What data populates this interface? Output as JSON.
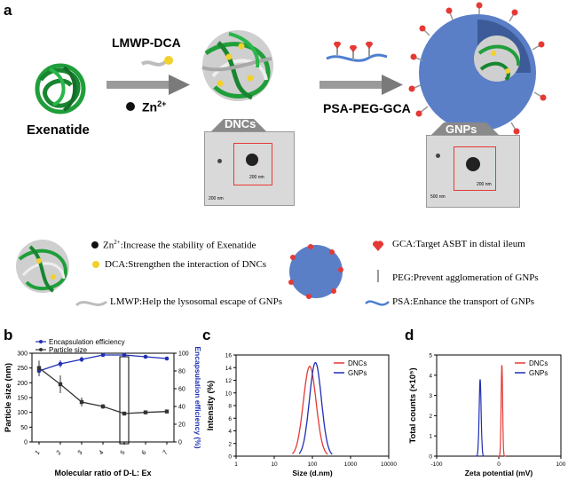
{
  "panels": {
    "a": "a",
    "b": "b",
    "c": "c",
    "d": "d"
  },
  "scheme": {
    "exenatide": "Exenatide",
    "lmwp_dca": "LMWP-DCA",
    "zn": "Zn",
    "zn_sup": "2+",
    "psa_peg_gca": "PSA-PEG-GCA",
    "dncs": "DNCs",
    "gnps": "GNPs",
    "scale_dnc_inner": "200 nm",
    "scale_dnc_outer": "200 nm",
    "scale_gnp_inner": "200 nm",
    "scale_gnp_outer": "500 nm"
  },
  "legend": {
    "zn_prefix": "Zn",
    "zn_sup": "2+",
    "zn_text": ":Increase the stability of Exenatide",
    "dca": "DCA:Strengthen the interaction of DNCs",
    "lmwp": "LMWP:Help the lysosomal escape of GNPs",
    "gca": "GCA:Target ASBT in distal ileum",
    "peg": "PEG:Prevent agglomeration of  GNPs",
    "psa": "PSA:Enhance the transport of GNPs"
  },
  "colors": {
    "red": "#e53935",
    "blue": "#1f2fb5",
    "green": "#1f9e3a",
    "yellow": "#f2d12a",
    "sphere": "#5b7fc7"
  },
  "chart_data": [
    {
      "id": "b",
      "type": "line",
      "xlabel": "Molecular ratio of  D-L: Ex",
      "ylabel": "Particle size (nm)",
      "y2label": "Encapsulation efficiency (%)",
      "x": [
        1,
        2,
        3,
        4,
        5,
        6,
        7
      ],
      "ylim": [
        0,
        300
      ],
      "yticks": [
        0,
        50,
        100,
        150,
        200,
        250,
        300
      ],
      "y2lim": [
        0,
        100
      ],
      "y2ticks": [
        0,
        20,
        40,
        60,
        80,
        100
      ],
      "highlight_x": 5,
      "series": [
        {
          "name": "Encapsulation efficiency",
          "axis": "right",
          "color": "#1f2fb5",
          "values": [
            80,
            88,
            93,
            98,
            98,
            96,
            94
          ],
          "errors": [
            6,
            4,
            3,
            2,
            2,
            2,
            2
          ]
        },
        {
          "name": "Particle size",
          "axis": "left",
          "color": "#333333",
          "values": [
            250,
            195,
            135,
            120,
            96,
            100,
            103
          ],
          "errors": [
            25,
            30,
            15,
            8,
            5,
            5,
            4
          ]
        }
      ]
    },
    {
      "id": "c",
      "type": "line",
      "xlabel": "Size (d.nm)",
      "ylabel": "Intensity (%)",
      "xscale": "log",
      "xticks": [
        1,
        10,
        100,
        1000,
        10000
      ],
      "xticklabels": [
        "1",
        "10",
        "100",
        "1000",
        "10000"
      ],
      "ylim": [
        0,
        16
      ],
      "yticks": [
        0,
        2,
        4,
        6,
        8,
        10,
        12,
        14,
        16
      ],
      "series": [
        {
          "name": "DNCs",
          "color": "#e53935",
          "peak_x": 85,
          "peak_y": 14.2,
          "x_min": 30,
          "x_max": 250
        },
        {
          "name": "GNPs",
          "color": "#1f2fb5",
          "peak_x": 120,
          "peak_y": 14.8,
          "x_min": 45,
          "x_max": 330
        }
      ]
    },
    {
      "id": "d",
      "type": "line",
      "xlabel": "Zeta potential (mV)",
      "ylabel": "Total counts (×10⁵)",
      "xlim": [
        -100,
        100
      ],
      "xticks": [
        -100,
        0,
        100
      ],
      "xticklabels": [
        "-100",
        "0",
        "100"
      ],
      "ylim": [
        0,
        5
      ],
      "yticks": [
        0,
        1,
        2,
        3,
        4,
        5
      ],
      "series": [
        {
          "name": "DNCs",
          "color": "#e53935",
          "peak_x": 5,
          "peak_y": 4.5,
          "width": 3
        },
        {
          "name": "GNPs",
          "color": "#1f2fb5",
          "peak_x": -30,
          "peak_y": 3.8,
          "width": 4
        }
      ]
    }
  ]
}
